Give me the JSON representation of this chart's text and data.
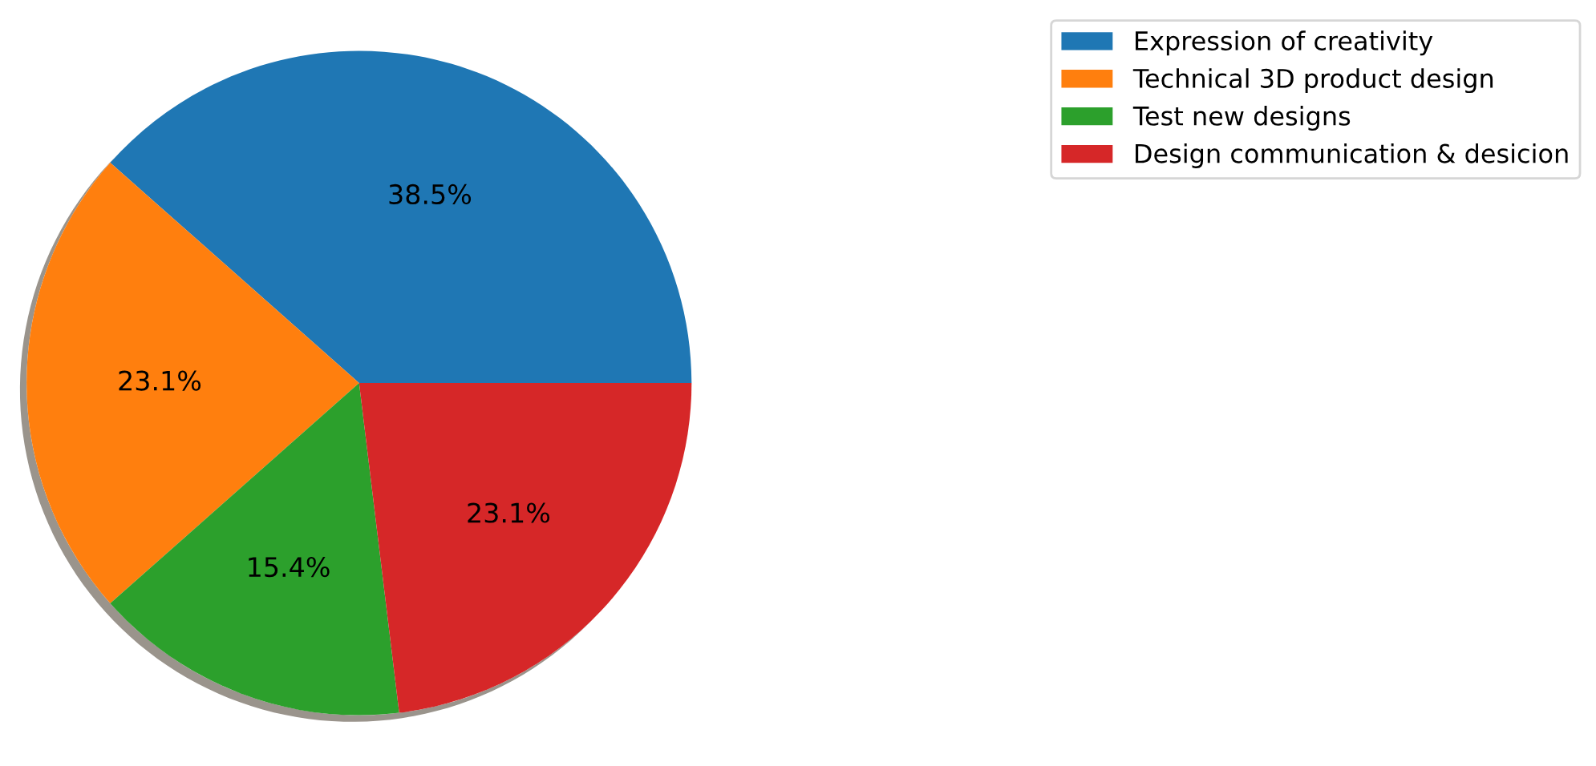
{
  "chart_data": {
    "type": "pie",
    "categories": [
      "Expression of creativity",
      "Technical 3D product design",
      "Test new designs",
      "Design communication & desicion"
    ],
    "values": [
      38.5,
      23.1,
      15.4,
      23.1
    ],
    "colors": [
      "#1f77b4",
      "#ff7f0e",
      "#2ca02c",
      "#d62728"
    ],
    "value_labels": [
      "38.5%",
      "23.1%",
      "15.4%",
      "23.1%"
    ],
    "legend": "top right"
  }
}
